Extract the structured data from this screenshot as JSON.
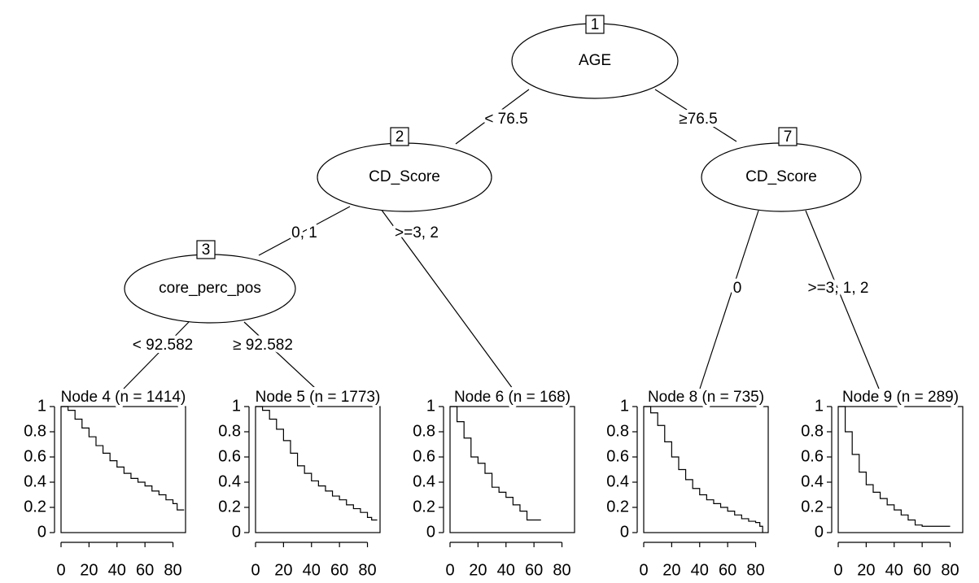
{
  "tree": {
    "nodes": [
      {
        "id": "1",
        "label": "AGE"
      },
      {
        "id": "2",
        "label": "CD_Score"
      },
      {
        "id": "7",
        "label": "CD_Score"
      },
      {
        "id": "3",
        "label": "core_perc_pos"
      }
    ],
    "edges": [
      "< 76.5",
      "≥76.5",
      "0, 1",
      ">=3, 2",
      "0",
      ">=3, 1, 2",
      "< 92.582",
      "≥ 92.582"
    ]
  },
  "chart_data": [
    {
      "type": "line",
      "drawstyle": "steps-post",
      "color": "#000000",
      "title": "Node 4 (n = 1414)",
      "x": [
        0,
        5,
        10,
        15,
        20,
        25,
        30,
        35,
        40,
        45,
        50,
        55,
        60,
        65,
        70,
        75,
        80,
        83,
        88
      ],
      "values": [
        1,
        0.97,
        0.9,
        0.83,
        0.76,
        0.69,
        0.63,
        0.57,
        0.52,
        0.47,
        0.43,
        0.4,
        0.37,
        0.33,
        0.3,
        0.26,
        0.23,
        0.18,
        0.18
      ],
      "xlim": [
        0,
        89
      ],
      "ylim": [
        0,
        1
      ],
      "xticks": [
        0,
        20,
        40,
        60,
        80
      ],
      "yticks": [
        0,
        0.2,
        0.4,
        0.6,
        0.8,
        1
      ]
    },
    {
      "type": "line",
      "drawstyle": "steps-post",
      "color": "#000000",
      "title": "Node 5 (n = 1773)",
      "x": [
        0,
        5,
        10,
        15,
        20,
        25,
        30,
        35,
        40,
        45,
        50,
        55,
        60,
        65,
        70,
        75,
        80,
        83,
        87
      ],
      "values": [
        1,
        0.97,
        0.9,
        0.82,
        0.73,
        0.63,
        0.53,
        0.47,
        0.41,
        0.37,
        0.33,
        0.29,
        0.26,
        0.22,
        0.19,
        0.16,
        0.12,
        0.1,
        0.1
      ],
      "xlim": [
        0,
        89
      ],
      "ylim": [
        0,
        1
      ],
      "xticks": [
        0,
        20,
        40,
        60,
        80
      ],
      "yticks": [
        0,
        0.2,
        0.4,
        0.6,
        0.8,
        1
      ]
    },
    {
      "type": "line",
      "drawstyle": "steps-post",
      "color": "#000000",
      "title": "Node 6 (n = 168)",
      "x": [
        0,
        5,
        10,
        15,
        20,
        25,
        30,
        35,
        40,
        45,
        50,
        55,
        65
      ],
      "values": [
        1,
        0.88,
        0.75,
        0.6,
        0.55,
        0.47,
        0.36,
        0.32,
        0.28,
        0.22,
        0.17,
        0.1,
        0.1
      ],
      "xlim": [
        0,
        89
      ],
      "ylim": [
        0,
        1
      ],
      "xticks": [
        0,
        20,
        40,
        60,
        80
      ],
      "yticks": [
        0,
        0.2,
        0.4,
        0.6,
        0.8,
        1
      ]
    },
    {
      "type": "line",
      "drawstyle": "steps-post",
      "color": "#000000",
      "title": "Node 8 (n = 735)",
      "x": [
        0,
        5,
        10,
        15,
        20,
        25,
        30,
        35,
        40,
        45,
        50,
        55,
        60,
        65,
        70,
        75,
        80,
        83,
        85
      ],
      "values": [
        1,
        0.95,
        0.85,
        0.72,
        0.6,
        0.5,
        0.42,
        0.35,
        0.3,
        0.26,
        0.23,
        0.2,
        0.17,
        0.14,
        0.11,
        0.09,
        0.08,
        0.05,
        0
      ],
      "xlim": [
        0,
        89
      ],
      "ylim": [
        0,
        1
      ],
      "xticks": [
        0,
        20,
        40,
        60,
        80
      ],
      "yticks": [
        0,
        0.2,
        0.4,
        0.6,
        0.8,
        1
      ]
    },
    {
      "type": "line",
      "drawstyle": "steps-post",
      "color": "#000000",
      "title": "Node 9 (n = 289)",
      "x": [
        0,
        5,
        10,
        15,
        20,
        25,
        30,
        35,
        40,
        45,
        50,
        55,
        60,
        80
      ],
      "values": [
        1,
        0.8,
        0.62,
        0.48,
        0.38,
        0.32,
        0.27,
        0.22,
        0.18,
        0.14,
        0.1,
        0.06,
        0.05,
        0.05
      ],
      "xlim": [
        0,
        89
      ],
      "ylim": [
        0,
        1
      ],
      "xticks": [
        0,
        20,
        40,
        60,
        80
      ],
      "yticks": [
        0,
        0.2,
        0.4,
        0.6,
        0.8,
        1
      ]
    }
  ]
}
